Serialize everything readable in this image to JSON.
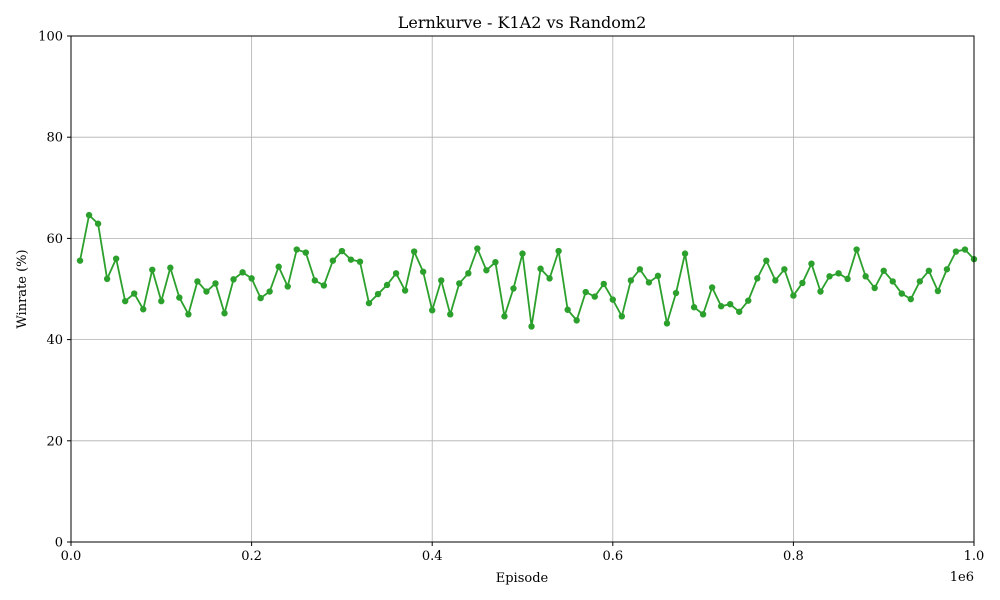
{
  "chart_data": {
    "type": "line",
    "title": "Lernkurve - K1A2 vs Random2",
    "xlabel": "Episode",
    "ylabel": "Winrate (%)",
    "x_offset_label": "1e6",
    "xlim": [
      0,
      1000000
    ],
    "ylim": [
      0,
      100
    ],
    "grid": true,
    "x_tick_values": [
      0,
      200000,
      400000,
      600000,
      800000,
      1000000
    ],
    "x_tick_labels": [
      "0.0",
      "0.2",
      "0.4",
      "0.6",
      "0.8",
      "1.0"
    ],
    "y_tick_values": [
      0,
      20,
      40,
      60,
      80,
      100
    ],
    "y_tick_labels": [
      "0",
      "20",
      "40",
      "60",
      "80",
      "100"
    ],
    "colors": {
      "series": "#2ca02c",
      "grid": "#b0b0b0"
    },
    "series": [
      {
        "x": [
          10000,
          20000,
          30000,
          40000,
          50000,
          60000,
          70000,
          80000,
          90000,
          100000,
          110000,
          120000,
          130000,
          140000,
          150000,
          160000,
          170000,
          180000,
          190000,
          200000,
          210000,
          220000,
          230000,
          240000,
          250000,
          260000,
          270000,
          280000,
          290000,
          300000,
          310000,
          320000,
          330000,
          340000,
          350000,
          360000,
          370000,
          380000,
          390000,
          400000,
          410000,
          420000,
          430000,
          440000,
          450000,
          460000,
          470000,
          480000,
          490000,
          500000,
          510000,
          520000,
          530000,
          540000,
          550000,
          560000,
          570000,
          580000,
          590000,
          600000,
          610000,
          620000,
          630000,
          640000,
          650000,
          660000,
          670000,
          680000,
          690000,
          700000,
          710000,
          720000,
          730000,
          740000,
          750000,
          760000,
          770000,
          780000,
          790000,
          800000,
          810000,
          820000,
          830000,
          840000,
          850000,
          860000,
          870000,
          880000,
          890000,
          900000,
          910000,
          920000,
          930000,
          940000,
          950000,
          960000,
          970000,
          980000,
          990000,
          1000000
        ],
        "values": [
          55.6,
          64.6,
          62.9,
          52.0,
          56.0,
          47.6,
          49.1,
          46.0,
          53.8,
          47.6,
          54.2,
          48.3,
          45.0,
          51.5,
          49.5,
          51.1,
          45.2,
          51.9,
          53.3,
          52.1,
          48.2,
          49.5,
          54.4,
          50.5,
          57.8,
          57.2,
          51.7,
          50.7,
          55.6,
          57.5,
          55.8,
          55.4,
          47.2,
          49.0,
          50.8,
          53.1,
          49.7,
          57.4,
          53.4,
          45.8,
          51.7,
          45.0,
          51.1,
          53.1,
          58.0,
          53.7,
          55.3,
          44.6,
          50.1,
          57.0,
          42.6,
          54.0,
          52.1,
          57.5,
          45.9,
          43.8,
          49.4,
          48.5,
          51.0,
          47.9,
          44.6,
          51.7,
          53.9,
          51.3,
          52.6,
          43.2,
          49.2,
          57.0,
          46.4,
          45.0,
          50.3,
          46.6,
          47.0,
          45.5,
          47.7,
          52.1,
          55.6,
          51.7,
          53.9,
          48.7,
          51.2,
          55.0,
          49.5,
          52.5,
          53.1,
          52.0,
          57.8,
          52.5,
          50.2,
          53.6,
          51.5,
          49.1,
          48.0,
          51.5,
          53.6,
          49.6,
          53.9,
          57.4,
          57.8,
          55.9
        ]
      }
    ]
  }
}
